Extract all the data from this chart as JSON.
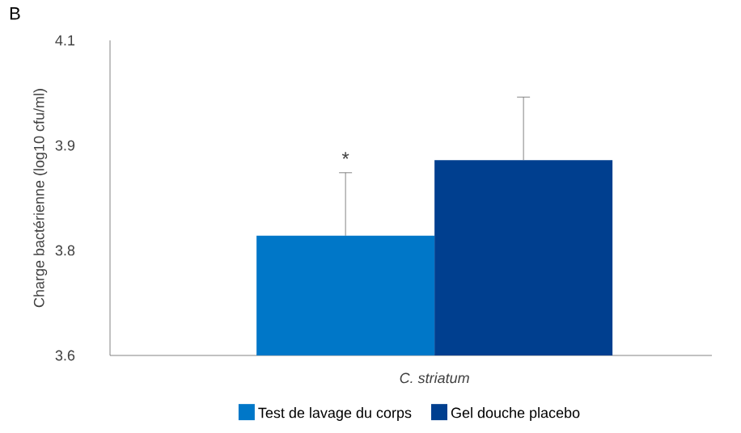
{
  "chart_data": {
    "type": "bar",
    "title": "B",
    "ylabel": "Charge bactérienne (log10 cfu/ml)",
    "categories": [
      "C. striatum"
    ],
    "series": [
      {
        "name": "Test de lavage du corps",
        "color": "#0077c8",
        "values": [
          3.79
        ],
        "errors": [
          [
            3.79,
            3.89
          ]
        ]
      },
      {
        "name": "Gel douche placebo",
        "color": "#003f8f",
        "values": [
          3.91
        ],
        "errors": [
          [
            3.91,
            4.01
          ]
        ]
      }
    ],
    "ylim": [
      3.6,
      4.1
    ],
    "yticks": [
      3.6,
      {
        "value": 3.7667,
        "label": "3.8"
      },
      {
        "value": 3.9333,
        "label": "3.9"
      },
      4.1
    ],
    "annotations": [
      "*"
    ],
    "grid": false,
    "legend": "bottom"
  }
}
